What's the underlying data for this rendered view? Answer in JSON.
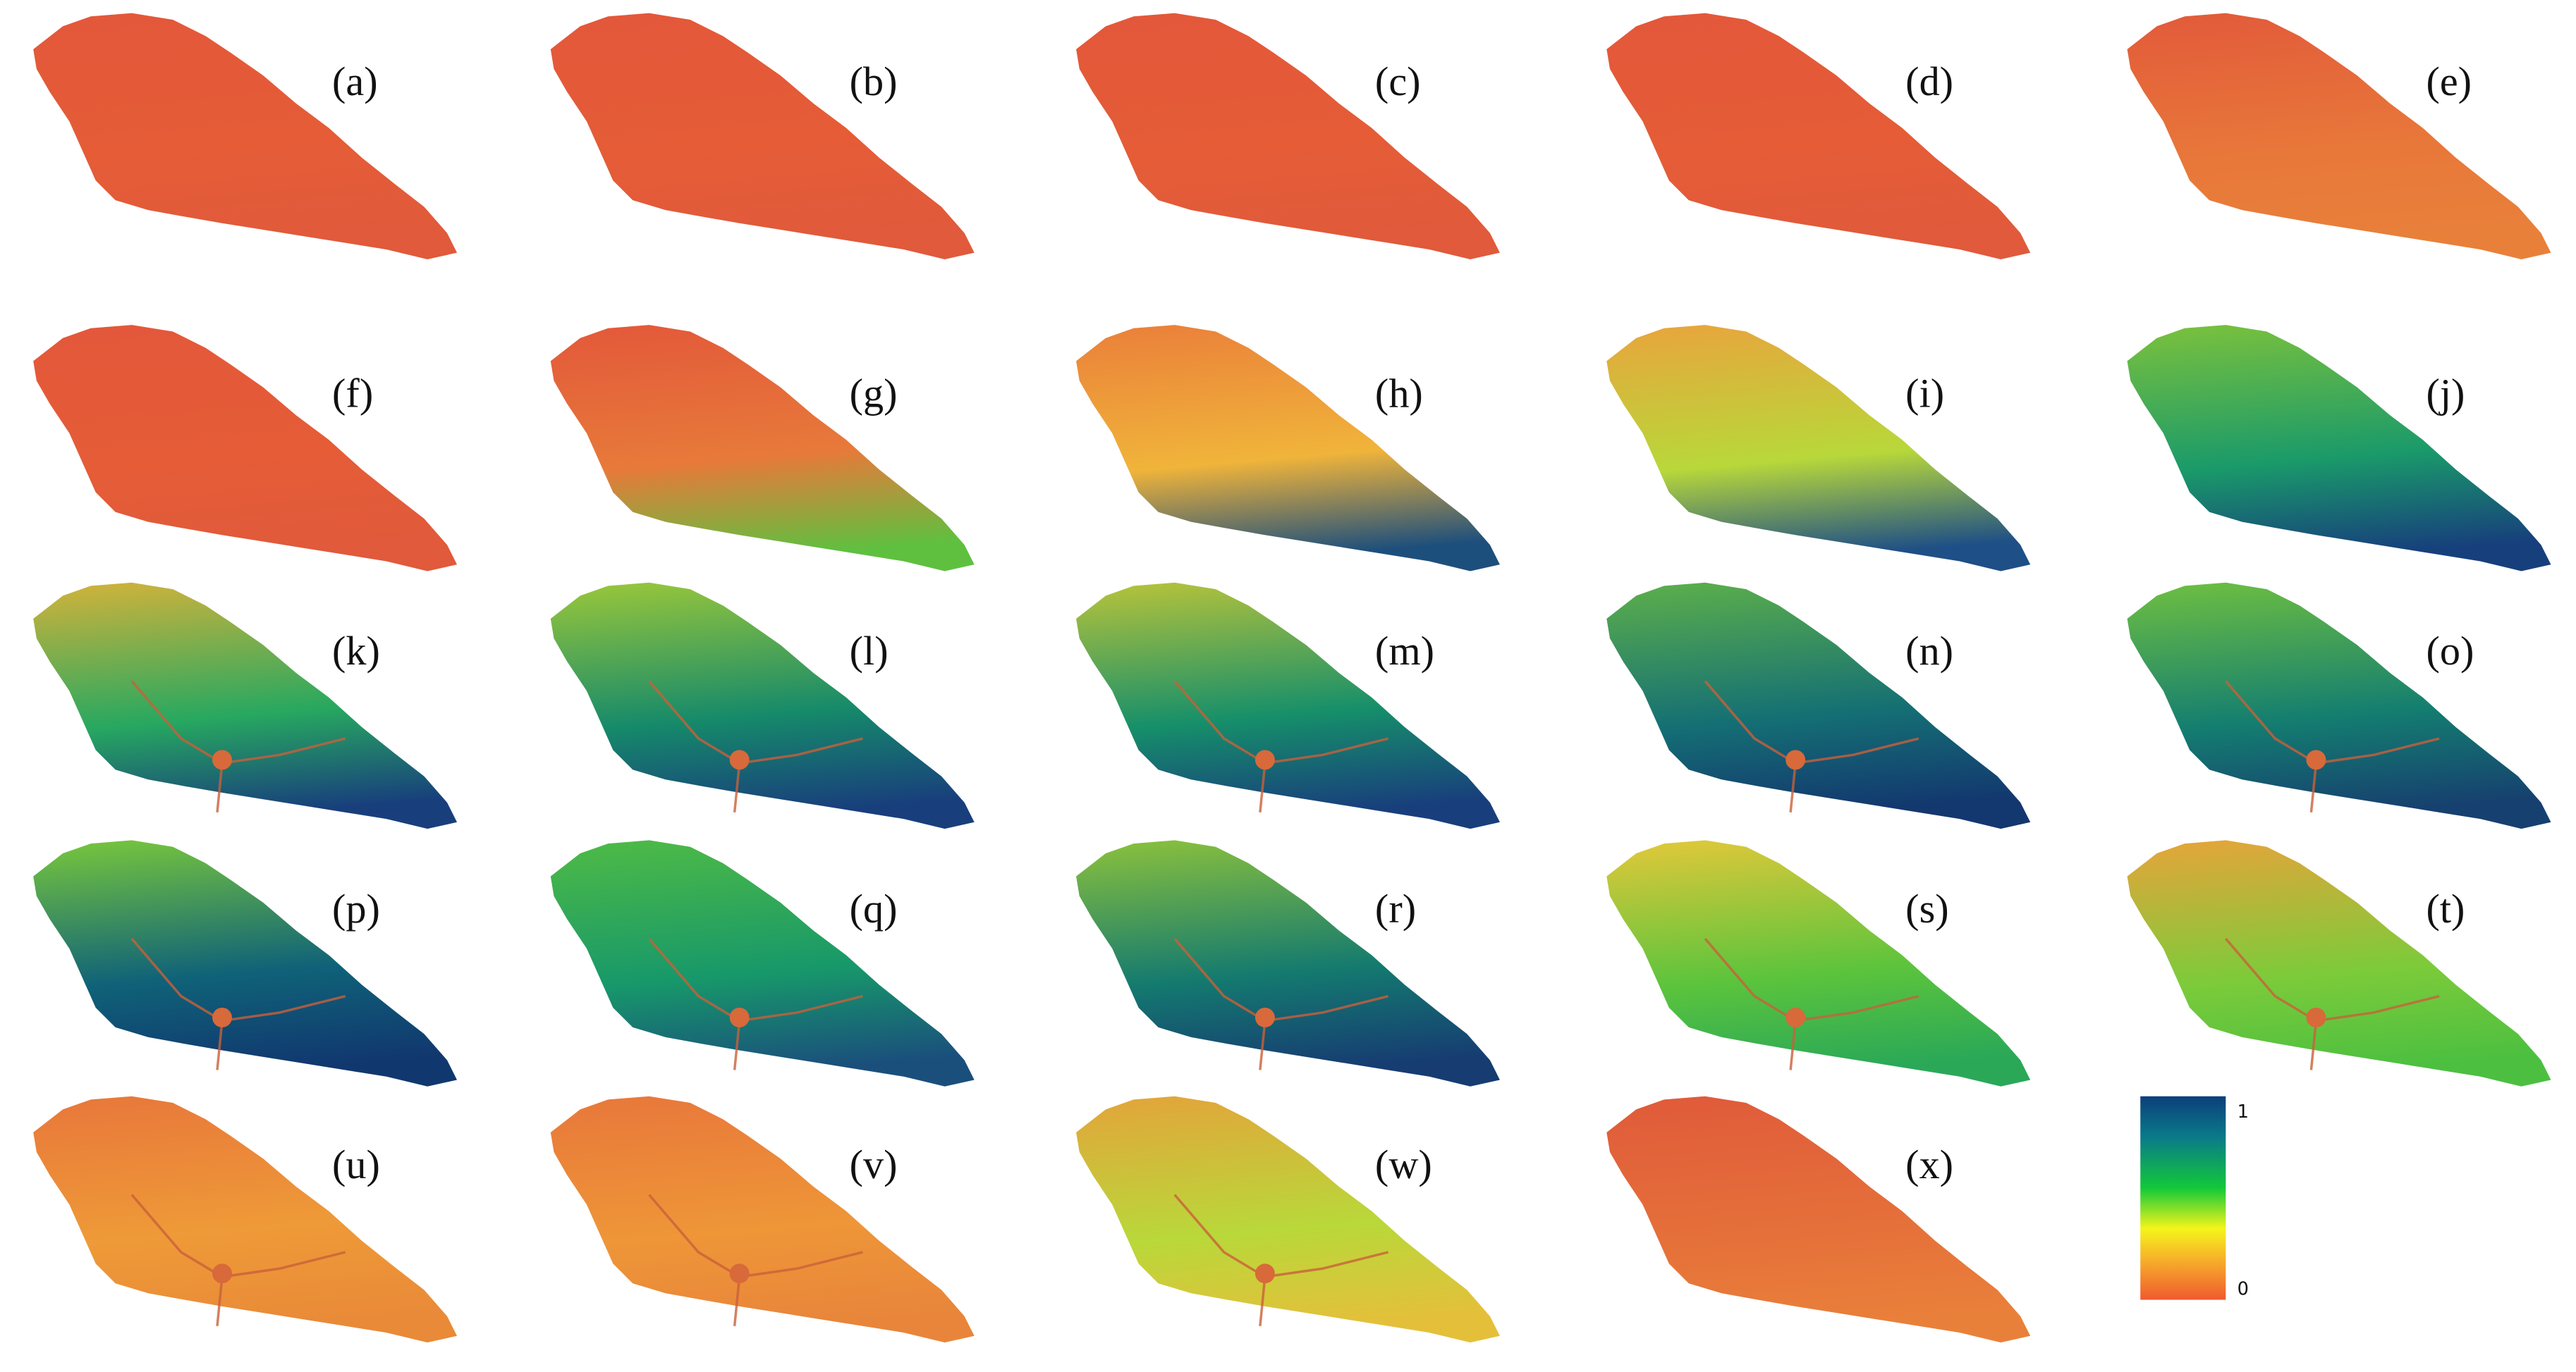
{
  "panels": [
    {
      "label": "(a)"
    },
    {
      "label": "(b)"
    },
    {
      "label": "(c)"
    },
    {
      "label": "(d)"
    },
    {
      "label": "(e)"
    },
    {
      "label": "(f)"
    },
    {
      "label": "(g)"
    },
    {
      "label": "(h)"
    },
    {
      "label": "(i)"
    },
    {
      "label": "(j)"
    },
    {
      "label": "(k)"
    },
    {
      "label": "(l)"
    },
    {
      "label": "(m)"
    },
    {
      "label": "(n)"
    },
    {
      "label": "(o)"
    },
    {
      "label": "(p)"
    },
    {
      "label": "(q)"
    },
    {
      "label": "(r)"
    },
    {
      "label": "(s)"
    },
    {
      "label": "(t)"
    },
    {
      "label": "(u)"
    },
    {
      "label": "(v)"
    },
    {
      "label": "(w)"
    },
    {
      "label": "(x)"
    }
  ],
  "legend": {
    "max_label": "1",
    "min_label": "0"
  }
}
